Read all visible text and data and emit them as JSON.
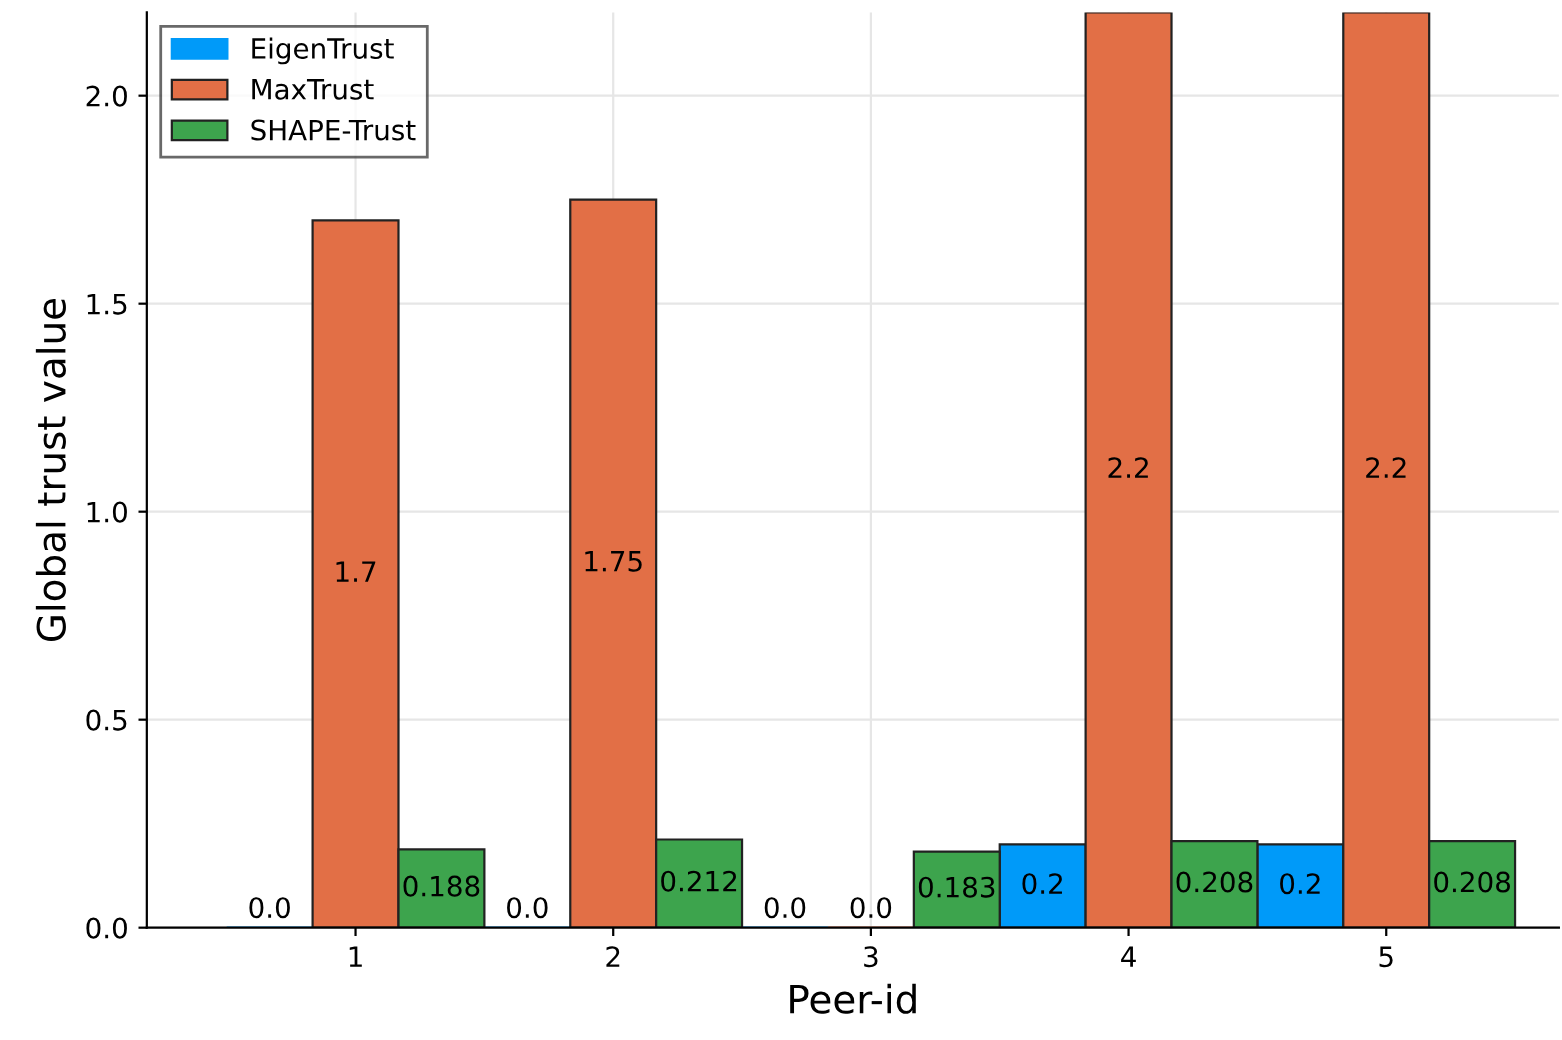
{
  "chart_data": {
    "type": "bar",
    "xlabel": "Peer-id",
    "ylabel": "Global trust value",
    "categories": [
      "1",
      "2",
      "3",
      "4",
      "5"
    ],
    "series": [
      {
        "name": "EigenTrust",
        "color": "#009af9",
        "values": [
          0.0,
          0.0,
          0.0,
          0.2,
          0.2
        ],
        "value_labels": [
          "0.0",
          "0.0",
          "0.0",
          "0.2",
          "0.2"
        ]
      },
      {
        "name": "MaxTrust",
        "color": "#e26f46",
        "values": [
          1.7,
          1.75,
          0.0,
          2.2,
          2.2
        ],
        "value_labels": [
          "1.7",
          "1.75",
          "0.0",
          "2.2",
          "2.2"
        ]
      },
      {
        "name": "SHAPE-Trust",
        "color": "#3da44d",
        "values": [
          0.188,
          0.212,
          0.183,
          0.208,
          0.208
        ],
        "value_labels": [
          "0.188",
          "0.212",
          "0.183",
          "0.208",
          "0.208"
        ]
      }
    ],
    "ylim": [
      0,
      2.2
    ],
    "yticks": [
      {
        "value": 0,
        "label": "0.0"
      },
      {
        "value": 0.5,
        "label": "0.5"
      },
      {
        "value": 1.0,
        "label": "1.0"
      },
      {
        "value": 1.5,
        "label": "1.5"
      },
      {
        "value": 2.0,
        "label": "2.0"
      }
    ],
    "grid": true,
    "legend": "top left"
  }
}
